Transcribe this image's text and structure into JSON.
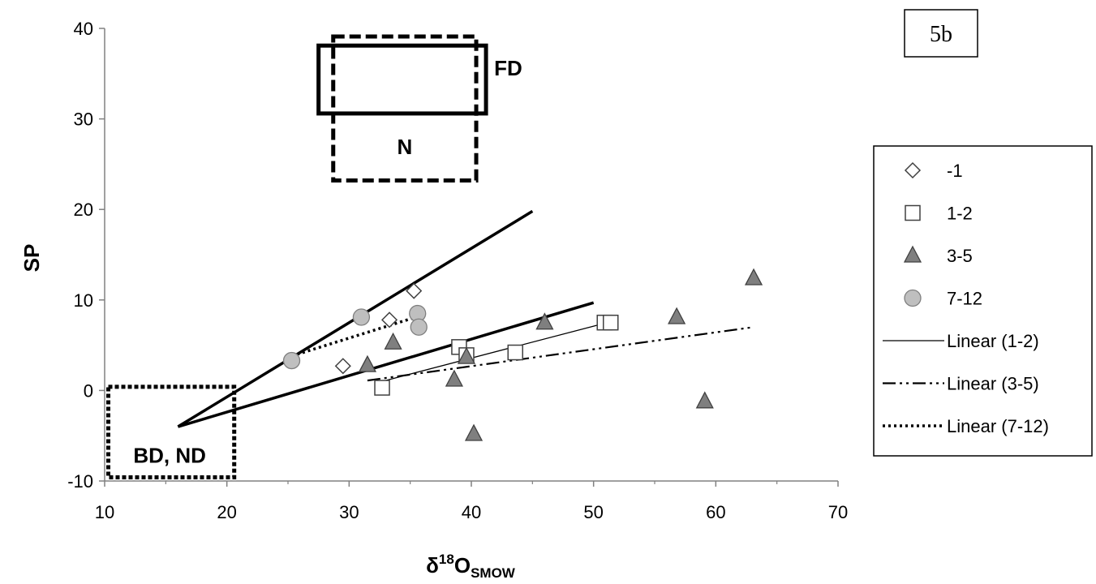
{
  "chart_data": {
    "type": "scatter",
    "panel_label": "5b",
    "xlabel_main": "δ",
    "xlabel_sup": "18",
    "xlabel_O": "O",
    "xlabel_sub": "SMOW",
    "ylabel": "SP",
    "xlim": [
      10,
      70
    ],
    "ylim": [
      -10,
      40
    ],
    "x_ticks": [
      10,
      20,
      30,
      40,
      50,
      60,
      70
    ],
    "y_ticks": [
      -10,
      0,
      10,
      20,
      30,
      40
    ],
    "grid": false,
    "legend_position": "right",
    "series": [
      {
        "name": "-1",
        "marker": "diamond",
        "fill": "#ffffff",
        "points": [
          [
            29.5,
            2.7
          ],
          [
            33.3,
            7.8
          ],
          [
            35.3,
            11.0
          ]
        ]
      },
      {
        "name": "1-2",
        "marker": "square",
        "fill": "#ffffff",
        "points": [
          [
            32.7,
            0.3
          ],
          [
            39.0,
            4.8
          ],
          [
            39.6,
            3.9
          ],
          [
            43.6,
            4.2
          ],
          [
            50.9,
            7.5
          ],
          [
            51.4,
            7.5
          ]
        ]
      },
      {
        "name": "3-5",
        "marker": "triangle",
        "fill": "#7f7f7f",
        "points": [
          [
            31.5,
            2.8
          ],
          [
            33.6,
            5.3
          ],
          [
            38.6,
            1.2
          ],
          [
            39.6,
            3.7
          ],
          [
            40.2,
            -4.8
          ],
          [
            46.0,
            7.5
          ],
          [
            56.8,
            8.1
          ],
          [
            59.1,
            -1.2
          ],
          [
            63.1,
            12.4
          ]
        ]
      },
      {
        "name": "7-12",
        "marker": "circle",
        "fill": "#bfbfbf",
        "points": [
          [
            25.3,
            3.3
          ],
          [
            31.0,
            8.1
          ],
          [
            35.6,
            8.5
          ],
          [
            35.7,
            7.0
          ]
        ]
      }
    ],
    "trendlines": [
      {
        "name": "Linear (1-2)",
        "style": "thin",
        "from": [
          32.7,
          1.0
        ],
        "to": [
          51.4,
          7.6
        ]
      },
      {
        "name": "Linear (3-5)",
        "style": "dashdot",
        "from": [
          31.5,
          1.1
        ],
        "to": [
          63.1,
          7.0
        ]
      },
      {
        "name": "Linear (7-12)",
        "style": "dotted",
        "from": [
          25.3,
          3.8
        ],
        "to": [
          35.7,
          8.2
        ]
      }
    ],
    "reference_lines": [
      {
        "from": [
          16.0,
          -4.0
        ],
        "to": [
          45.0,
          19.8
        ]
      },
      {
        "from": [
          16.0,
          -4.0
        ],
        "to": [
          50.0,
          9.7
        ]
      }
    ],
    "regions": [
      {
        "label": "FD",
        "style": "solid",
        "x": [
          27.5,
          41.2
        ],
        "y": [
          30.6,
          38.1
        ]
      },
      {
        "label": "N",
        "style": "dashed",
        "x": [
          28.7,
          40.4
        ],
        "y": [
          23.2,
          39.1
        ]
      },
      {
        "label": "BD, ND",
        "style": "dotted",
        "x": [
          10.3,
          20.6
        ],
        "y": [
          -9.6,
          0.4
        ]
      }
    ]
  }
}
